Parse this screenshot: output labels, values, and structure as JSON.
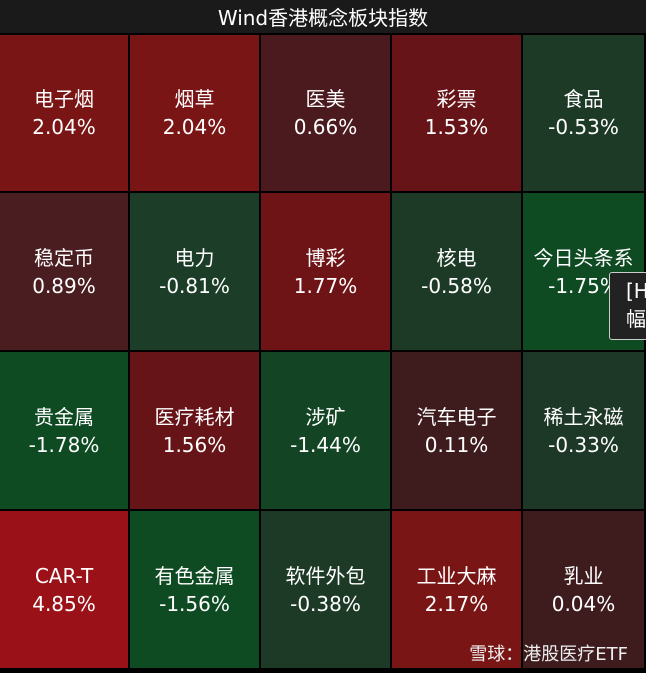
{
  "header": {
    "title": "Wind香港概念板块指数"
  },
  "tiles": [
    {
      "name": "电子烟",
      "change": "2.04%",
      "color": "#7a1515"
    },
    {
      "name": "烟草",
      "change": "2.04%",
      "color": "#7a1515"
    },
    {
      "name": "医美",
      "change": "0.66%",
      "color": "#4a1a1e"
    },
    {
      "name": "彩票",
      "change": "1.53%",
      "color": "#661418"
    },
    {
      "name": "食品",
      "change": "-0.53%",
      "color": "#1d3a26"
    },
    {
      "name": "稳定币",
      "change": "0.89%",
      "color": "#4a1e20"
    },
    {
      "name": "电力",
      "change": "-0.81%",
      "color": "#1c3d28"
    },
    {
      "name": "博彩",
      "change": "1.77%",
      "color": "#6e1416"
    },
    {
      "name": "核电",
      "change": "-0.58%",
      "color": "#1d3a26"
    },
    {
      "name": "今日头条系",
      "change": "-1.75%",
      "color": "#0e4a22"
    },
    {
      "name": "贵金属",
      "change": "-1.78%",
      "color": "#0e4a22"
    },
    {
      "name": "医疗耗材",
      "change": "1.56%",
      "color": "#661418"
    },
    {
      "name": "涉矿",
      "change": "-1.44%",
      "color": "#134524"
    },
    {
      "name": "汽车电子",
      "change": "0.11%",
      "color": "#3e1c1e"
    },
    {
      "name": "稀土永磁",
      "change": "-0.33%",
      "color": "#1d3826"
    },
    {
      "name": "CAR-T",
      "change": "4.85%",
      "color": "#9a1218"
    },
    {
      "name": "有色金属",
      "change": "-1.56%",
      "color": "#0e4a22"
    },
    {
      "name": "软件外包",
      "change": "-0.38%",
      "color": "#1d3a26"
    },
    {
      "name": "工业大麻",
      "change": "2.17%",
      "color": "#7a1516"
    },
    {
      "name": "乳业",
      "change": "0.04%",
      "color": "#3e1c1e"
    }
  ],
  "tooltip": {
    "line1": "[H",
    "line2": "幅"
  },
  "watermark": "雪球：港股医疗ETF"
}
